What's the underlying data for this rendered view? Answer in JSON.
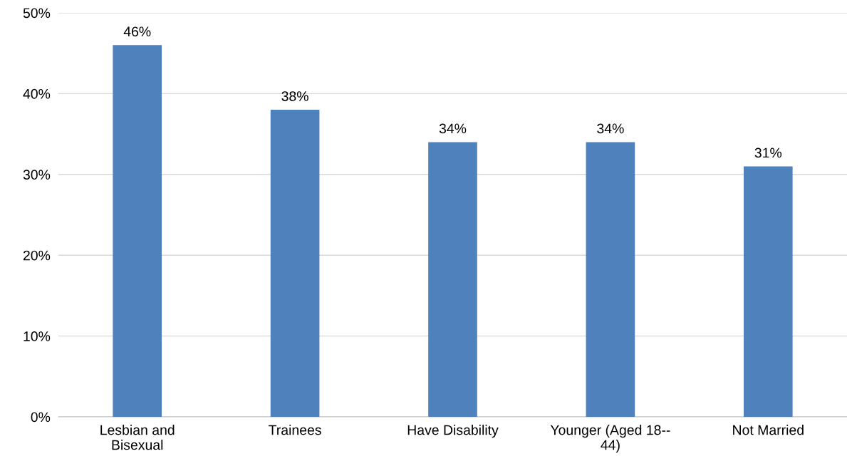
{
  "chart_data": {
    "type": "bar",
    "categories": [
      "Lesbian and Bisexual",
      "Trainees",
      "Have Disability",
      "Younger (Aged 18--44)",
      "Not Married"
    ],
    "values": [
      46,
      38,
      34,
      34,
      31
    ],
    "value_labels": [
      "46%",
      "38%",
      "34%",
      "34%",
      "31%"
    ],
    "color": "#4f81bd",
    "ylim": [
      0,
      50
    ],
    "yticks": [
      {
        "value": 0,
        "label": "0%"
      },
      {
        "value": 10,
        "label": "10%"
      },
      {
        "value": 20,
        "label": "20%"
      },
      {
        "value": 30,
        "label": "30%"
      },
      {
        "value": 40,
        "label": "40%"
      },
      {
        "value": 50,
        "label": "50%"
      }
    ],
    "grid": "y",
    "legend": false
  }
}
